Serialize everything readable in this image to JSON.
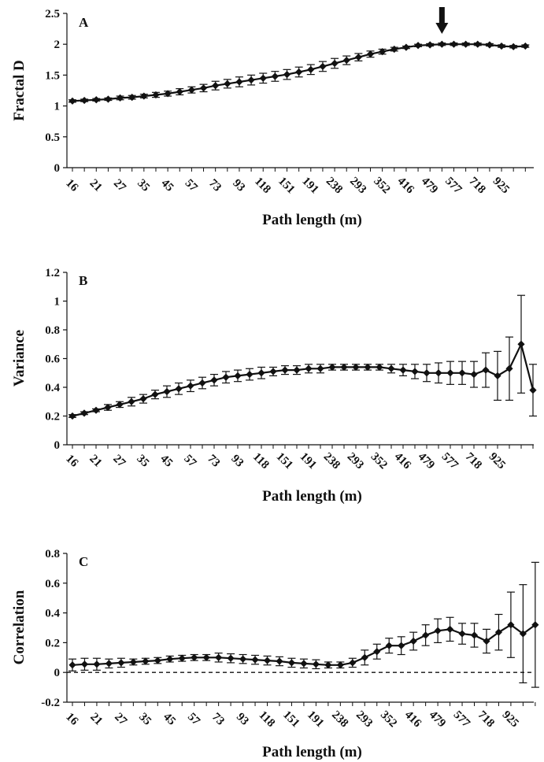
{
  "chart_data": [
    {
      "type": "line",
      "panel": "A",
      "ylabel": "Fractal D",
      "xlabel": "Path length (m)",
      "ylim": [
        0,
        2.5
      ],
      "yticks": [
        0,
        0.5,
        1,
        1.5,
        2,
        2.5
      ],
      "ytick_labels": [
        "0",
        "0.5",
        "1",
        "1.5",
        "2",
        "2.5"
      ],
      "xtick_labels": [
        "16",
        "21",
        "27",
        "35",
        "45",
        "57",
        "73",
        "93",
        "118",
        "151",
        "191",
        "238",
        "293",
        "352",
        "416",
        "479",
        "577",
        "718",
        "925"
      ],
      "annotation": "arrow pointing down above point 31",
      "arrow_index": 31,
      "values": [
        1.08,
        1.09,
        1.1,
        1.11,
        1.13,
        1.14,
        1.16,
        1.18,
        1.2,
        1.23,
        1.26,
        1.29,
        1.33,
        1.36,
        1.39,
        1.42,
        1.45,
        1.48,
        1.51,
        1.55,
        1.59,
        1.64,
        1.69,
        1.74,
        1.79,
        1.84,
        1.88,
        1.92,
        1.95,
        1.98,
        1.99,
        2.0,
        2.0,
        2.0,
        2.0,
        1.99,
        1.97,
        1.96,
        1.97
      ],
      "errors": [
        0.02,
        0.02,
        0.02,
        0.02,
        0.03,
        0.03,
        0.03,
        0.04,
        0.04,
        0.05,
        0.05,
        0.06,
        0.07,
        0.07,
        0.08,
        0.08,
        0.08,
        0.08,
        0.08,
        0.08,
        0.08,
        0.08,
        0.08,
        0.07,
        0.06,
        0.05,
        0.04,
        0.03,
        0.02,
        0.02,
        0.02,
        0.02,
        0.02,
        0.02,
        0.02,
        0.02,
        0.02,
        0.02,
        0.02
      ]
    },
    {
      "type": "line",
      "panel": "B",
      "ylabel": "Variance",
      "xlabel": "Path length (m)",
      "ylim": [
        0,
        1.2
      ],
      "yticks": [
        0,
        0.2,
        0.4,
        0.6,
        0.8,
        1,
        1.2
      ],
      "ytick_labels": [
        "0",
        "0.2",
        "0.4",
        "0.6",
        "0.8",
        "1",
        "1.2"
      ],
      "xtick_labels": [
        "16",
        "21",
        "27",
        "35",
        "45",
        "57",
        "73",
        "93",
        "118",
        "151",
        "191",
        "238",
        "293",
        "352",
        "416",
        "479",
        "577",
        "718",
        "925"
      ],
      "values": [
        0.2,
        0.22,
        0.24,
        0.26,
        0.28,
        0.3,
        0.32,
        0.35,
        0.37,
        0.39,
        0.41,
        0.43,
        0.45,
        0.47,
        0.48,
        0.49,
        0.5,
        0.51,
        0.52,
        0.52,
        0.53,
        0.53,
        0.54,
        0.54,
        0.54,
        0.54,
        0.54,
        0.53,
        0.52,
        0.51,
        0.5,
        0.5,
        0.5,
        0.5,
        0.49,
        0.52,
        0.48,
        0.53,
        0.7,
        0.38
      ],
      "errors": [
        0.01,
        0.01,
        0.01,
        0.02,
        0.02,
        0.03,
        0.03,
        0.03,
        0.04,
        0.04,
        0.04,
        0.04,
        0.04,
        0.04,
        0.04,
        0.04,
        0.04,
        0.03,
        0.03,
        0.03,
        0.03,
        0.03,
        0.02,
        0.02,
        0.02,
        0.02,
        0.02,
        0.03,
        0.04,
        0.05,
        0.06,
        0.07,
        0.08,
        0.08,
        0.09,
        0.12,
        0.17,
        0.22,
        0.34,
        0.18
      ]
    },
    {
      "type": "line",
      "panel": "C",
      "ylabel": "Correlation",
      "xlabel": "Path length (m)",
      "ylim": [
        -0.2,
        0.8
      ],
      "yticks": [
        -0.2,
        0,
        0.2,
        0.4,
        0.6,
        0.8
      ],
      "ytick_labels": [
        "-0.2",
        "0",
        "0.2",
        "0.4",
        "0.6",
        "0.8"
      ],
      "reference_line": 0,
      "xtick_labels": [
        "16",
        "21",
        "27",
        "35",
        "45",
        "57",
        "73",
        "93",
        "118",
        "151",
        "191",
        "238",
        "293",
        "352",
        "416",
        "479",
        "577",
        "718",
        "925"
      ],
      "values": [
        0.05,
        0.055,
        0.055,
        0.06,
        0.065,
        0.07,
        0.075,
        0.08,
        0.09,
        0.095,
        0.1,
        0.1,
        0.1,
        0.095,
        0.09,
        0.085,
        0.08,
        0.075,
        0.065,
        0.06,
        0.055,
        0.05,
        0.05,
        0.065,
        0.1,
        0.14,
        0.18,
        0.18,
        0.21,
        0.25,
        0.28,
        0.29,
        0.26,
        0.25,
        0.21,
        0.27,
        0.32,
        0.26,
        0.32
      ],
      "errors": [
        0.04,
        0.04,
        0.04,
        0.03,
        0.03,
        0.02,
        0.02,
        0.02,
        0.02,
        0.02,
        0.02,
        0.02,
        0.03,
        0.03,
        0.03,
        0.03,
        0.03,
        0.03,
        0.03,
        0.03,
        0.03,
        0.02,
        0.02,
        0.03,
        0.05,
        0.05,
        0.05,
        0.06,
        0.06,
        0.07,
        0.08,
        0.08,
        0.07,
        0.08,
        0.08,
        0.12,
        0.22,
        0.33,
        0.42
      ]
    }
  ]
}
